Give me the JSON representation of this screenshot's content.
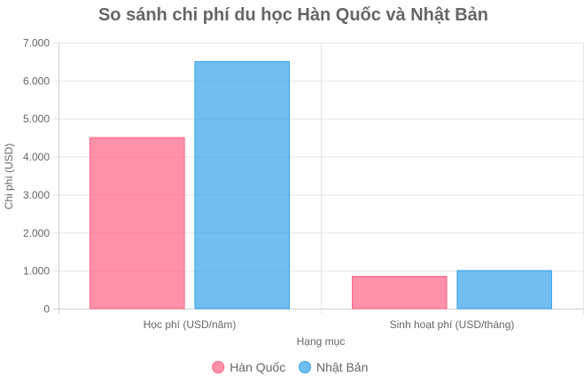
{
  "chart_data": {
    "type": "bar",
    "title": "So sánh chi phí du học Hàn Quốc và Nhật Bản",
    "xlabel": "Hạng mục",
    "ylabel": "Chi phí (USD)",
    "categories": [
      "Học phí (USD/năm)",
      "Sinh hoạt phí (USD/tháng)"
    ],
    "series": [
      {
        "name": "Hàn Quốc",
        "values": [
          4500,
          850
        ],
        "color": "#ff6384"
      },
      {
        "name": "Nhật Bản",
        "values": [
          6500,
          1000
        ],
        "color": "#36a2eb"
      }
    ],
    "ylim": [
      0,
      7000
    ],
    "yticks": [
      0,
      1000,
      2000,
      3000,
      4000,
      5000,
      6000,
      7000
    ],
    "ytick_labels": [
      "0",
      "1.000",
      "2.000",
      "3.000",
      "4.000",
      "5.000",
      "6.000",
      "7.000"
    ],
    "grid": true,
    "legend_position": "bottom"
  }
}
